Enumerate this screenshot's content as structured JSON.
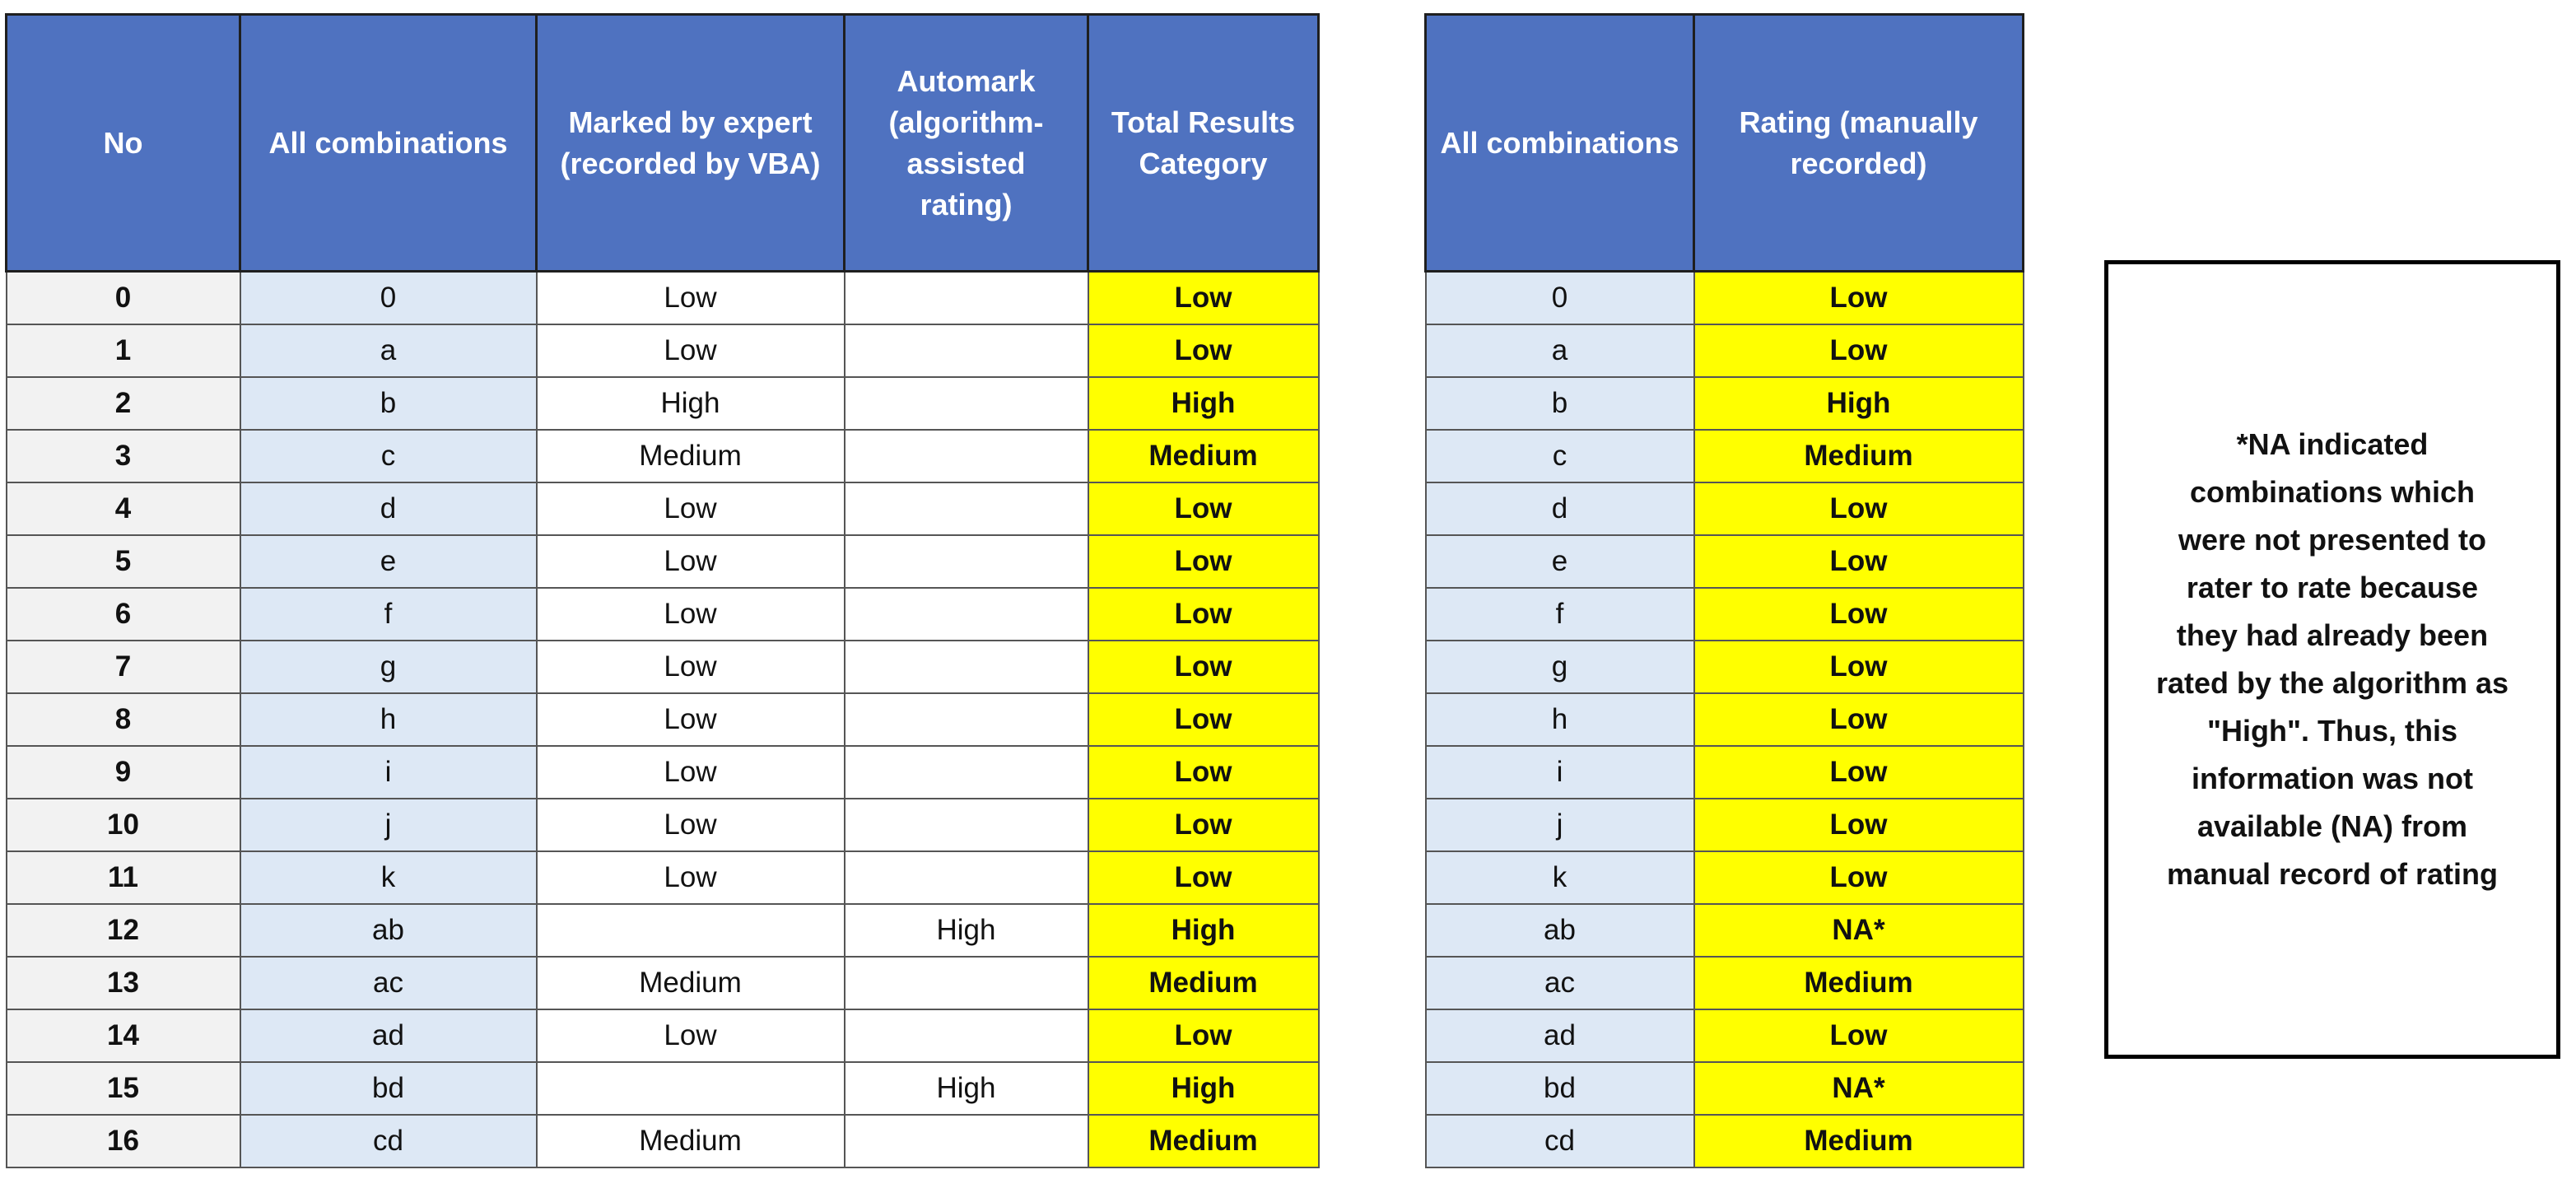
{
  "left_table": {
    "headers": [
      "No",
      "All combinations",
      "Marked by expert (recorded by VBA)",
      "Automark (algorithm-assisted rating)",
      "Total Results Category"
    ],
    "rows": [
      [
        0,
        "0",
        "Low",
        null,
        "Low"
      ],
      [
        1,
        "a",
        "Low",
        null,
        "Low"
      ],
      [
        2,
        "b",
        "High",
        null,
        "High"
      ],
      [
        3,
        "c",
        "Medium",
        null,
        "Medium"
      ],
      [
        4,
        "d",
        "Low",
        null,
        "Low"
      ],
      [
        5,
        "e",
        "Low",
        null,
        "Low"
      ],
      [
        6,
        "f",
        "Low",
        null,
        "Low"
      ],
      [
        7,
        "g",
        "Low",
        null,
        "Low"
      ],
      [
        8,
        "h",
        "Low",
        null,
        "Low"
      ],
      [
        9,
        "i",
        "Low",
        null,
        "Low"
      ],
      [
        10,
        "j",
        "Low",
        null,
        "Low"
      ],
      [
        11,
        "k",
        "Low",
        null,
        "Low"
      ],
      [
        12,
        "ab",
        null,
        "High",
        "High"
      ],
      [
        13,
        "ac",
        "Medium",
        null,
        "Medium"
      ],
      [
        14,
        "ad",
        "Low",
        null,
        "Low"
      ],
      [
        15,
        "bd",
        null,
        "High",
        "High"
      ],
      [
        16,
        "cd",
        "Medium",
        null,
        "Medium"
      ]
    ]
  },
  "right_table": {
    "headers": [
      "All combinations",
      "Rating (manually recorded)"
    ],
    "rows": [
      [
        "0",
        "Low"
      ],
      [
        "a",
        "Low"
      ],
      [
        "b",
        "High"
      ],
      [
        "c",
        "Medium"
      ],
      [
        "d",
        "Low"
      ],
      [
        "e",
        "Low"
      ],
      [
        "f",
        "Low"
      ],
      [
        "g",
        "Low"
      ],
      [
        "h",
        "Low"
      ],
      [
        "i",
        "Low"
      ],
      [
        "j",
        "Low"
      ],
      [
        "k",
        "Low"
      ],
      [
        "ab",
        "NA*"
      ],
      [
        "ac",
        "Medium"
      ],
      [
        "ad",
        "Low"
      ],
      [
        "bd",
        "NA*"
      ],
      [
        "cd",
        "Medium"
      ]
    ]
  },
  "note": {
    "lines": [
      "*NA indicated",
      "combinations which",
      "were not presented to",
      "rater to rate because",
      "they had already been",
      "rated by the algorithm as",
      "\"High\". Thus, this",
      "information was not",
      "available (NA) from",
      "manual record of rating"
    ]
  }
}
